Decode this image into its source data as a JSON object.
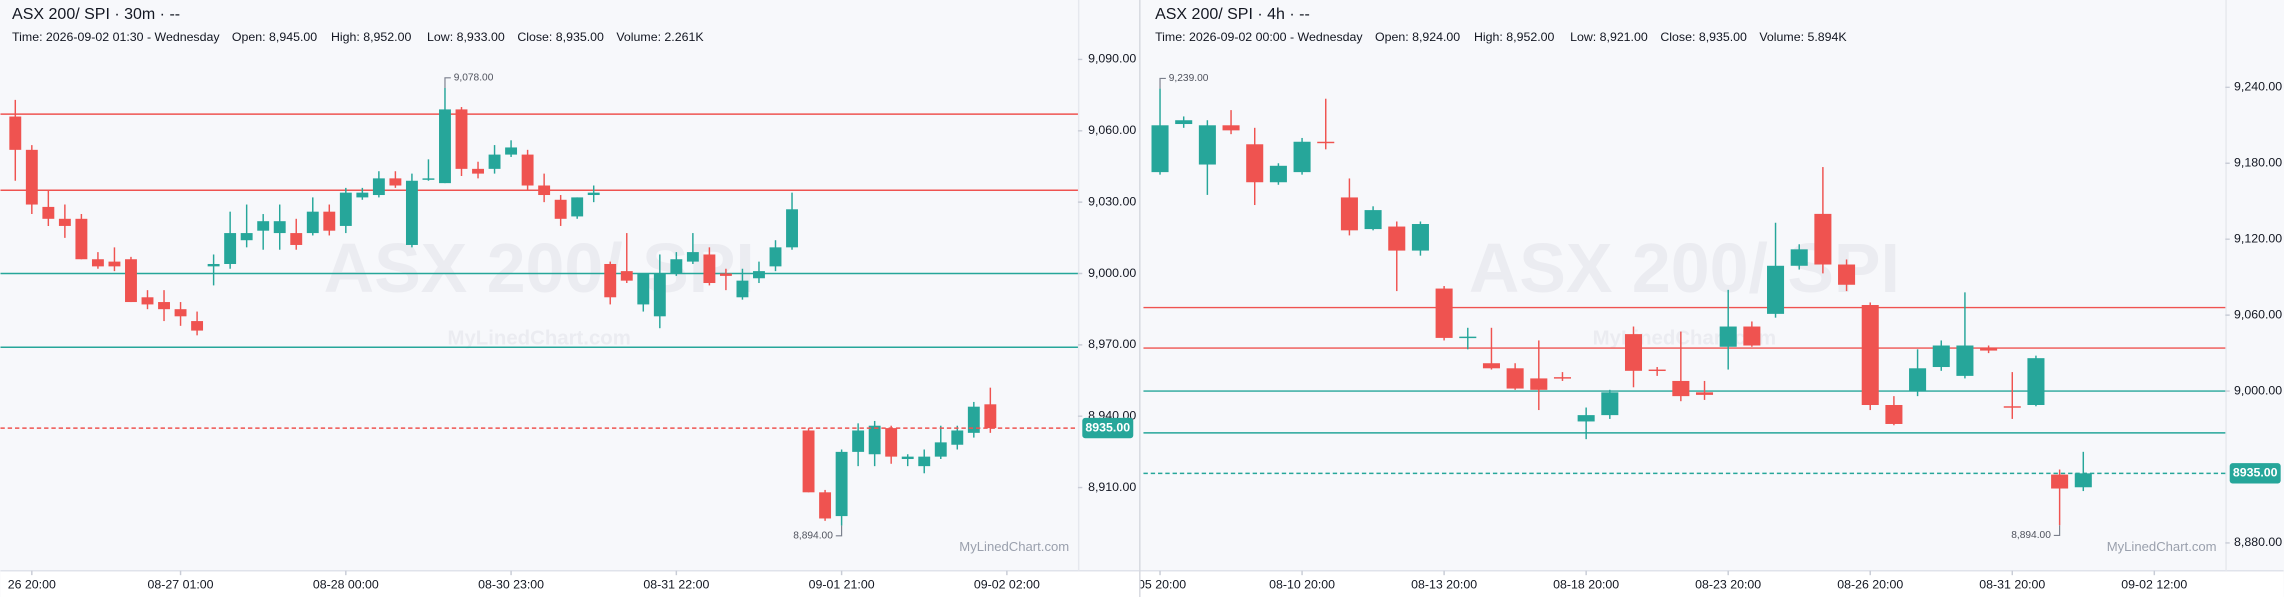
{
  "chart_data": [
    {
      "type": "candlestick",
      "title": "ASX 200/ SPI · 30m · --",
      "info": [
        "Time: 2026-09-02 01:30 - Wednesday",
        "Open: 8,945.00",
        "High: 8,952.00",
        "Low: 8,933.00",
        "Close: 8,935.00",
        "Volume: 2.261K"
      ],
      "watermark": "ASX 200/ SPI",
      "brand": "MyLinedChart.com",
      "up_color": "#26a69a",
      "down_color": "#ef5350",
      "xlim": [
        -0.9,
        64.3
      ],
      "xticks": [
        {
          "value": 1,
          "label": "26 20:00"
        },
        {
          "value": 10,
          "label": "08-27 01:00"
        },
        {
          "value": 20,
          "label": "08-28 00:00"
        },
        {
          "value": 30,
          "label": "08-30 23:00"
        },
        {
          "value": 40,
          "label": "08-31 22:00"
        },
        {
          "value": 50,
          "label": "09-01 21:00"
        },
        {
          "value": 60,
          "label": "09-02 02:00"
        }
      ],
      "ylim": [
        8875,
        9115
      ],
      "yticks": [
        {
          "value": 9090,
          "label": "9,090.00"
        },
        {
          "value": 9060,
          "label": "9,060.00"
        },
        {
          "value": 9030,
          "label": "9,030.00"
        },
        {
          "value": 9000,
          "label": "9,000.00"
        },
        {
          "value": 8970,
          "label": "8,970.00"
        },
        {
          "value": 8940,
          "label": "8,940.00"
        },
        {
          "value": 8910,
          "label": "8,910.00"
        }
      ],
      "open": [
        9066,
        9052,
        9028,
        9023,
        9023,
        9006,
        9005,
        9006,
        8990,
        8988,
        8985,
        8980,
        9003,
        9004,
        9014,
        9018,
        9017,
        9017,
        9017,
        9026,
        9020,
        9032,
        9033,
        9040,
        9012,
        9040,
        9038,
        9069,
        9044,
        9044,
        9050,
        9050,
        9037,
        9031,
        9024,
        9033,
        9004,
        9001,
        8987,
        8982,
        9000,
        9005,
        9008,
        9000,
        8990,
        8998,
        9003,
        9011,
        8934,
        8908,
        8898,
        8925,
        8924,
        8935,
        8922,
        8919,
        8923,
        8928,
        8933,
        8945
      ],
      "high": [
        9073,
        9054,
        9035,
        9029,
        9025,
        9009,
        9011,
        9007,
        8993,
        8993,
        8988,
        8984,
        9008,
        9026,
        9029,
        9025,
        9029,
        9023,
        9032,
        9029,
        9036,
        9036,
        9043,
        9043,
        9042,
        9048,
        9078,
        9070,
        9047,
        9054,
        9056,
        9052,
        9042,
        9033,
        9032,
        9037,
        9005,
        9017,
        9000,
        9008,
        9009,
        9017,
        9011,
        9002,
        9002,
        9005,
        9014,
        9034,
        8935,
        8909,
        8926,
        8937,
        8938,
        8936,
        8924,
        8926,
        8936,
        8936,
        8946,
        8952
      ],
      "low": [
        9039,
        9025,
        9020,
        9015,
        9006,
        9002,
        9001,
        8988,
        8985,
        8980,
        8978,
        8974,
        8995,
        9002,
        9011,
        9010,
        9010,
        9010,
        9016,
        9016,
        9017,
        9031,
        9032,
        9036,
        9011,
        9039,
        9038,
        9041,
        9040,
        9042,
        9049,
        9035,
        9030,
        9020,
        9023,
        9030,
        8987,
        8996,
        8984,
        8977,
        8999,
        9004,
        8995,
        8993,
        8989,
        8996,
        9001,
        9010,
        8908,
        8896,
        8894,
        8919,
        8919,
        8920,
        8919,
        8916,
        8922,
        8926,
        8931,
        8933
      ],
      "close": [
        9052,
        9029,
        9023,
        9020,
        9006,
        9003,
        9003,
        8988,
        8987,
        8985,
        8982,
        8976,
        9004,
        9017,
        9017,
        9022,
        9022,
        9012,
        9026,
        9018,
        9034,
        9034,
        9040,
        9037,
        9039,
        9040,
        9069,
        9044,
        9042,
        9050,
        9053,
        9037,
        9033,
        9023,
        9032,
        9034,
        8990,
        8997,
        9000,
        9000,
        9006,
        9009,
        8996,
        8999,
        8997,
        9001,
        9011,
        9027,
        8908,
        8897,
        8925,
        8934,
        8936,
        8923,
        8923,
        8923,
        8929,
        8934,
        8944,
        8935
      ],
      "levels": [
        {
          "value": 9067,
          "color": "#ef5350"
        },
        {
          "value": 9035,
          "color": "#ef5350"
        },
        {
          "value": 9000,
          "color": "#26a69a"
        },
        {
          "value": 8969,
          "color": "#26a69a"
        }
      ],
      "last_price": {
        "value": 8935,
        "label": "8935.00",
        "line_color": "#ef5350",
        "tag_color": "#26a69a"
      },
      "annotations": [
        {
          "x": 26,
          "value": 9078,
          "label": "9,078.00"
        },
        {
          "x": 50,
          "value": 8894,
          "label": "8,894.00"
        }
      ]
    },
    {
      "type": "candlestick",
      "title": "ASX 200/ SPI · 4h · --",
      "info": [
        "Time: 2026-09-02 00:00 - Wednesday",
        "Open: 8,924.00",
        "High: 8,952.00",
        "Low: 8,921.00",
        "Close: 8,935.00",
        "Volume: 5.894K"
      ],
      "watermark": "ASX 200/ SPI",
      "brand": "MyLinedChart.com",
      "up_color": "#26a69a",
      "down_color": "#ef5350",
      "xlim": [
        -0.7,
        45
      ],
      "xticks": [
        {
          "value": 0,
          "label": "-05 20:00"
        },
        {
          "value": 6,
          "label": "08-10 20:00"
        },
        {
          "value": 12,
          "label": "08-13 20:00"
        },
        {
          "value": 18,
          "label": "08-18 20:00"
        },
        {
          "value": 24,
          "label": "08-23 20:00"
        },
        {
          "value": 30,
          "label": "08-26 20:00"
        },
        {
          "value": 36,
          "label": "08-31 20:00"
        },
        {
          "value": 42,
          "label": "09-02 12:00"
        }
      ],
      "ylim": [
        8858,
        9309
      ],
      "yticks": [
        {
          "value": 9240,
          "label": "9,240.00"
        },
        {
          "value": 9180,
          "label": "9,180.00"
        },
        {
          "value": 9120,
          "label": "9,120.00"
        },
        {
          "value": 9060,
          "label": "9,060.00"
        },
        {
          "value": 9000,
          "label": "9,000.00"
        },
        {
          "value": 8880,
          "label": "8,880.00"
        }
      ],
      "open": [
        9173,
        9211,
        9179,
        9210,
        9195,
        9165,
        9173,
        9197,
        9153,
        9128,
        9130,
        9111,
        9081,
        9042,
        9022,
        9018,
        9010,
        9011,
        8976,
        8981,
        9045,
        9017,
        9008,
        8999,
        9035,
        9051,
        9061,
        9099,
        9140,
        9100,
        9068,
        8989,
        9000,
        9019,
        9012,
        9034,
        8988,
        8989,
        8934,
        8924
      ],
      "high": [
        9239,
        9217,
        9214,
        9222,
        9208,
        9180,
        9200,
        9231,
        9168,
        9146,
        9134,
        9134,
        9083,
        9050,
        9050,
        9022,
        9040,
        9015,
        8987,
        9001,
        9051,
        9019,
        9047,
        9008,
        9080,
        9055,
        9133,
        9116,
        9177,
        9104,
        9070,
        8996,
        9033,
        9040,
        9078,
        9036,
        9015,
        9028,
        8938,
        8952
      ],
      "low": [
        9171,
        9208,
        9155,
        9203,
        9147,
        9163,
        9171,
        9191,
        9123,
        9127,
        9079,
        9107,
        9040,
        9033,
        9017,
        9001,
        8985,
        9008,
        8962,
        8978,
        9003,
        9012,
        8992,
        8993,
        9017,
        9035,
        9058,
        9096,
        9093,
        9079,
        8985,
        8973,
        8996,
        9016,
        9010,
        9030,
        8978,
        8988,
        8894,
        8921
      ],
      "close": [
        9210,
        9214,
        9210,
        9206,
        9165,
        9178,
        9197,
        9196,
        9127,
        9143,
        9111,
        9132,
        9042,
        9043,
        9018,
        9002,
        9001,
        9010,
        8981,
        8999,
        9016,
        9016,
        8996,
        8997,
        9051,
        9036,
        9099,
        9112,
        9100,
        9084,
        8989,
        8974,
        9018,
        9036,
        9036,
        9032,
        8987,
        9026,
        8923,
        8935
      ],
      "levels": [
        {
          "value": 9066,
          "color": "#ef5350"
        },
        {
          "value": 9034,
          "color": "#ef5350"
        },
        {
          "value": 9000,
          "color": "#26a69a"
        },
        {
          "value": 8967,
          "color": "#26a69a"
        }
      ],
      "last_price": {
        "value": 8935,
        "label": "8935.00",
        "line_color": "#26a69a",
        "tag_color": "#26a69a"
      },
      "annotations": [
        {
          "x": 0,
          "value": 9239,
          "label": "9,239.00"
        },
        {
          "x": 38,
          "value": 8894,
          "label": "8,894.00"
        }
      ]
    }
  ]
}
